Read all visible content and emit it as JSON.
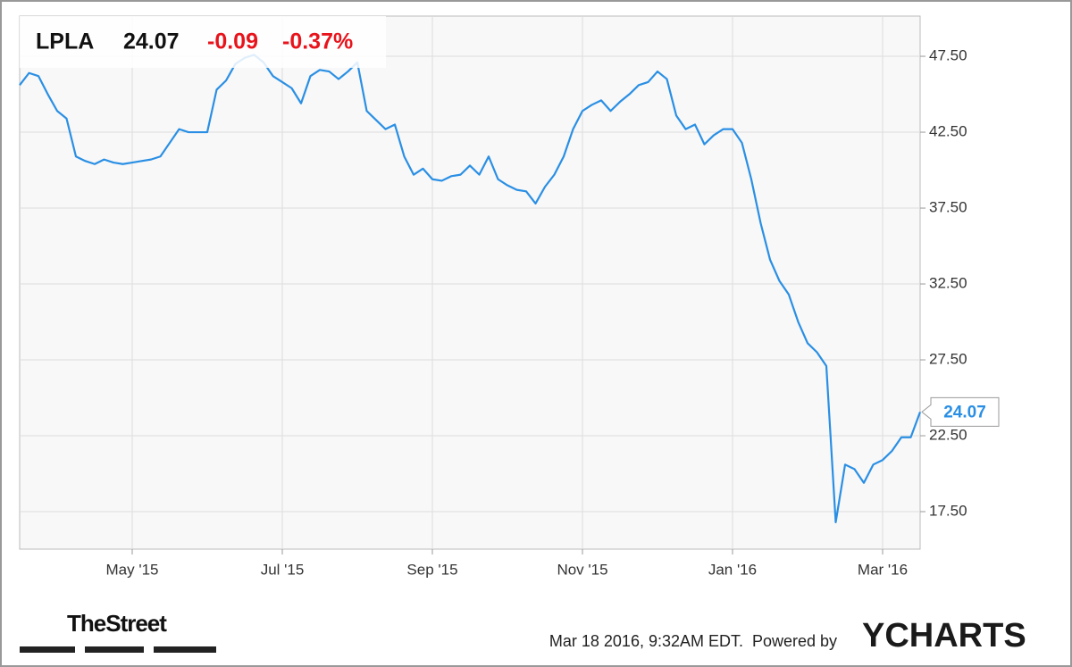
{
  "header": {
    "ticker": "LPLA",
    "price": "24.07",
    "change": "-0.09",
    "change_percent": "-0.37%"
  },
  "footer": {
    "brand": "TheStreet",
    "timestamp": "Mar 18 2016, 9:32AM EDT.",
    "powered_by": "Powered by",
    "provider": "YCHARTS"
  },
  "chart_data": {
    "type": "line",
    "categories": [
      null,
      null,
      null,
      null,
      null,
      null,
      null,
      null,
      null,
      null,
      null,
      null,
      "May '15",
      null,
      null,
      null,
      null,
      null,
      null,
      null,
      null,
      null,
      null,
      null,
      null,
      null,
      null,
      null,
      "Jul '15",
      null,
      null,
      null,
      null,
      null,
      null,
      null,
      null,
      null,
      null,
      null,
      null,
      null,
      null,
      null,
      "Sep '15",
      null,
      null,
      null,
      null,
      null,
      null,
      null,
      null,
      null,
      null,
      null,
      null,
      null,
      null,
      null,
      "Nov '15",
      null,
      null,
      null,
      null,
      null,
      null,
      null,
      null,
      null,
      null,
      null,
      null,
      null,
      null,
      null,
      "Jan '16",
      null,
      null,
      null,
      null,
      null,
      null,
      null,
      null,
      null,
      null,
      null,
      null,
      null,
      null,
      null,
      "Mar '16",
      null,
      null,
      null,
      null
    ],
    "series": [
      {
        "name": "LPLA",
        "color": "#2a8fe4",
        "values": [
          45.6,
          46.4,
          46.2,
          45.0,
          43.9,
          43.4,
          40.9,
          40.6,
          40.4,
          40.7,
          40.5,
          40.4,
          40.5,
          40.6,
          40.7,
          40.9,
          41.8,
          42.7,
          42.5,
          42.5,
          42.5,
          45.3,
          45.9,
          47.0,
          47.4,
          47.6,
          47.1,
          46.2,
          45.8,
          45.4,
          44.4,
          46.2,
          46.6,
          46.5,
          46.0,
          46.5,
          47.1,
          43.9,
          43.3,
          42.7,
          43.0,
          40.9,
          39.7,
          40.1,
          39.4,
          39.3,
          39.6,
          39.7,
          40.3,
          39.7,
          40.9,
          39.4,
          39.0,
          38.7,
          38.6,
          37.8,
          38.9,
          39.7,
          40.9,
          42.7,
          43.9,
          44.3,
          44.6,
          43.9,
          44.5,
          45.0,
          45.6,
          45.8,
          46.5,
          46.0,
          43.6,
          42.7,
          43.0,
          41.7,
          42.3,
          42.7,
          42.7,
          41.8,
          39.4,
          36.5,
          34.1,
          32.7,
          31.8,
          30.0,
          28.6,
          28.0,
          27.1,
          16.8,
          20.6,
          20.3,
          19.4,
          20.6,
          20.9,
          21.5,
          22.4,
          22.4,
          24.07
        ]
      }
    ],
    "ylim": [
      15.03,
      50.15
    ],
    "yticks": [
      {
        "value": 17.5,
        "label": "17.50"
      },
      {
        "value": 22.5,
        "label": "22.50"
      },
      {
        "value": 27.5,
        "label": "27.50"
      },
      {
        "value": 32.5,
        "label": "32.50"
      },
      {
        "value": 37.5,
        "label": "37.50"
      },
      {
        "value": 42.5,
        "label": "42.50"
      },
      {
        "value": 47.5,
        "label": "47.50"
      }
    ],
    "grid": true,
    "y_axis_side": "right"
  }
}
